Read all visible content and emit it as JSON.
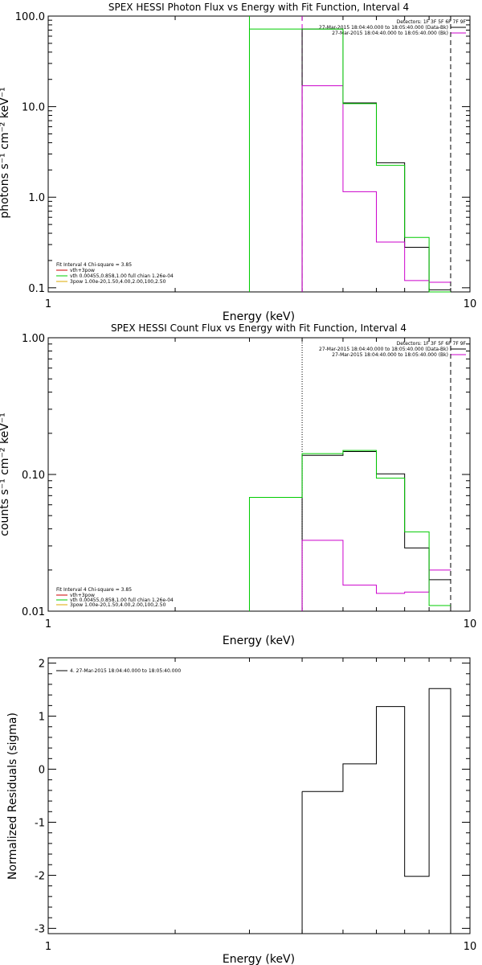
{
  "chart_data": [
    {
      "type": "line",
      "title": "SPEX HESSI Photon Flux vs Energy with Fit Function, Interval 4",
      "xlabel": "Energy (keV)",
      "ylabel": "photons s⁻¹ cm⁻² keV⁻¹",
      "xscale": "log",
      "yscale": "log",
      "xlim": [
        1,
        10
      ],
      "ylim": [
        0.09,
        100
      ],
      "x_tick_labels": [
        "1",
        "10"
      ],
      "y_tick_labels": [
        "0.1",
        "1.0",
        "10.0",
        "100.0"
      ],
      "y_ticks": [
        0.1,
        1,
        10,
        100
      ],
      "detectors_text": "Detectors: 1F 3F 5F 6F 7F 9F",
      "data_legend": [
        {
          "text": "27-Mar-2015 18:04:40.000 to 18:05:40.000 (Data-Bk)",
          "color": "#000000"
        },
        {
          "text": "27-Mar-2015 18:04:40.000 to 18:05:40.000 (Bk)",
          "color": "#cc00cc"
        }
      ],
      "fit_legend_title": "Fit Interval  4   Chi-square = 3.85",
      "fit_legend": [
        {
          "text": "vth+3pow",
          "color": "#cc0000"
        },
        {
          "text": "vth 0.00455,0.858,1.00   full chian 1.26e-04",
          "color": "#00cc00"
        },
        {
          "text": "3pow 1.00e-20,1.50,4.00,2.00,100,2.50",
          "color": "#ddaa00"
        }
      ],
      "vlines": [
        {
          "x": 3.0,
          "style": "solid",
          "color": "#00cc00"
        },
        {
          "x": 4.0,
          "style": "dashed",
          "color": "#cc00cc"
        },
        {
          "x": 9.0,
          "style": "dashed",
          "color": "#000000"
        }
      ],
      "energy_edges": [
        3.0,
        4.0,
        5.0,
        6.0,
        7.0,
        8.0,
        9.0
      ],
      "series": [
        {
          "values": [
            null,
            72,
            11,
            2.4,
            0.28,
            0.095
          ],
          "color": "#000000"
        },
        {
          "values": [
            null,
            17,
            1.15,
            0.32,
            0.12,
            0.115
          ],
          "color": "#cc00cc"
        },
        {
          "values": [
            72,
            72,
            10.8,
            2.25,
            0.36,
            0.09
          ],
          "color": "#00cc00"
        }
      ]
    },
    {
      "type": "line",
      "title": "SPEX HESSI Count Flux vs Energy with Fit Function, Interval 4",
      "xlabel": "Energy (keV)",
      "ylabel": "counts s⁻¹ cm⁻² keV⁻¹",
      "xscale": "log",
      "yscale": "log",
      "xlim": [
        1,
        10
      ],
      "ylim": [
        0.01,
        1
      ],
      "x_tick_labels": [
        "1",
        "10"
      ],
      "y_tick_labels": [
        "0.01",
        "0.10",
        "1.00"
      ],
      "y_ticks": [
        0.01,
        0.1,
        1
      ],
      "detectors_text": "Detectors: 1F 3F 5F 6F 7F 9F",
      "data_legend": [
        {
          "text": "27-Mar-2015 18:04:40.000 to 18:05:40.000 (Data-Bk)",
          "color": "#000000"
        },
        {
          "text": "27-Mar-2015 18:04:40.000 to 18:05:40.000 (Bk)",
          "color": "#cc00cc"
        }
      ],
      "fit_legend_title": "Fit Interval  4   Chi-square = 3.85",
      "fit_legend": [
        {
          "text": "vth+3pow",
          "color": "#cc0000"
        },
        {
          "text": "vth 0.00455,0.858,1.00   full chian 1.26e-04",
          "color": "#00cc00"
        },
        {
          "text": "3pow 1.00e-20,1.50,4.00,2.00,100,2.50",
          "color": "#ddaa00"
        }
      ],
      "vlines": [
        {
          "x": 4.0,
          "style": "dotted",
          "color": "#000000"
        },
        {
          "x": 9.0,
          "style": "dashed",
          "color": "#000000"
        }
      ],
      "energy_edges": [
        3.0,
        4.0,
        5.0,
        6.0,
        7.0,
        8.0,
        9.0
      ],
      "series": [
        {
          "values": [
            null,
            0.138,
            0.147,
            0.101,
            0.029,
            0.017
          ],
          "color": "#000000"
        },
        {
          "values": [
            null,
            0.033,
            0.0155,
            0.0135,
            0.0138,
            0.02
          ],
          "color": "#cc00cc"
        },
        {
          "values": [
            0.068,
            0.142,
            0.15,
            0.094,
            0.038,
            0.011
          ],
          "color": "#00cc00"
        }
      ]
    },
    {
      "type": "line",
      "title": "",
      "xlabel": "Energy (keV)",
      "ylabel": "Normalized Residuals (sigma)",
      "xscale": "log",
      "yscale": "linear",
      "xlim": [
        1,
        10
      ],
      "ylim": [
        -3.1,
        2.1
      ],
      "x_tick_labels": [
        "1",
        "10"
      ],
      "y_tick_labels": [
        "-3",
        "-2",
        "-1",
        "0",
        "1",
        "2"
      ],
      "y_ticks": [
        -3,
        -2,
        -1,
        0,
        1,
        2
      ],
      "legend": [
        {
          "text": "4. 27-Mar-2015 18:04:40.000 to 18:05:40.000",
          "color": "#000000"
        }
      ],
      "energy_edges": [
        4.0,
        5.0,
        6.0,
        7.0,
        8.0,
        9.0
      ],
      "series": [
        {
          "values": [
            -0.42,
            0.1,
            1.18,
            -2.02,
            1.52
          ],
          "color": "#000000"
        }
      ]
    }
  ]
}
